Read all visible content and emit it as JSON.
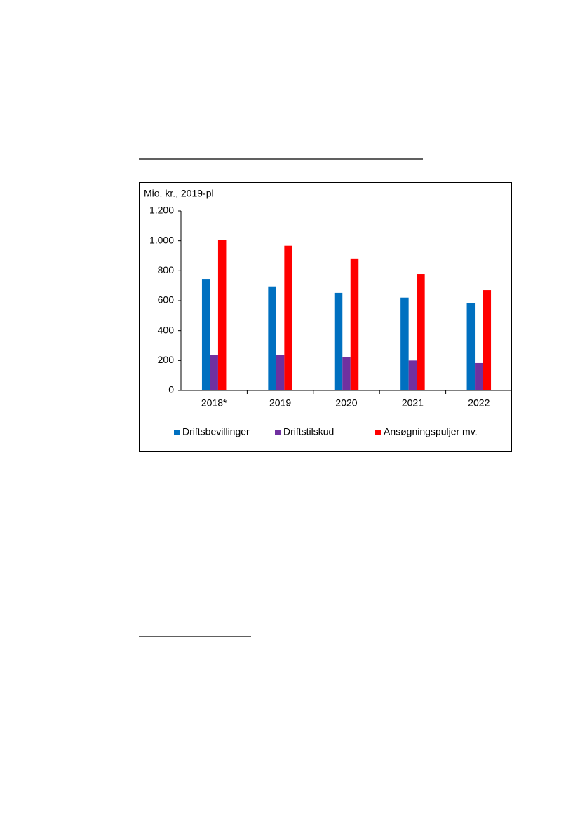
{
  "chart_data": {
    "type": "bar",
    "y_label": "Mio. kr., 2019-pl",
    "categories": [
      "2018*",
      "2019",
      "2020",
      "2021",
      "2022"
    ],
    "series": [
      {
        "name": "Driftsbevillinger",
        "color": "#0070c0",
        "values": [
          745,
          695,
          652,
          620,
          583
        ]
      },
      {
        "name": "Driftstilskud",
        "color": "#7030a0",
        "values": [
          237,
          235,
          225,
          200,
          183
        ]
      },
      {
        "name": "Ansøgningspuljer mv.",
        "color": "#ff0000",
        "values": [
          1005,
          967,
          882,
          778,
          670
        ]
      }
    ],
    "ylim": [
      0,
      1200
    ],
    "yticks": [
      0,
      200,
      400,
      600,
      800,
      {
        "value": 1000,
        "label": "1.000"
      },
      {
        "value": 1200,
        "label": "1.200"
      }
    ],
    "grid": false,
    "legend": "bottom"
  }
}
